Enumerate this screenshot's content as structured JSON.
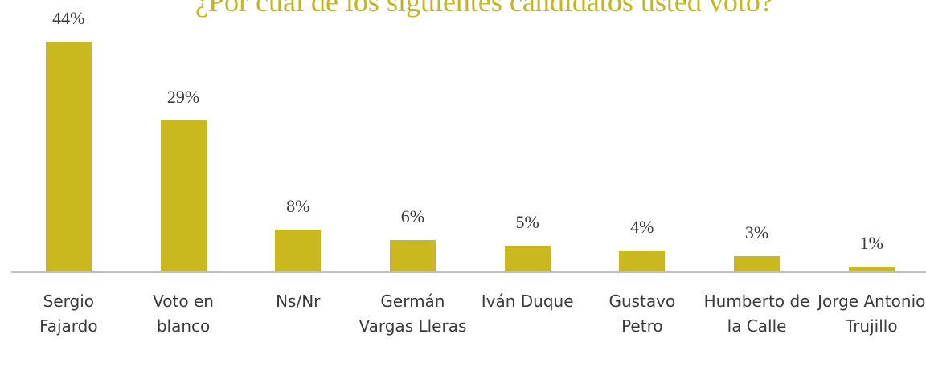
{
  "chart_data": {
    "type": "bar",
    "title": "¿Por cuál de los siguientes candidatos usted votó?",
    "categories": [
      "Sergio Fajardo",
      "Voto en blanco",
      "Ns/Nr",
      "Germán Vargas Lleras",
      "Iván Duque",
      "Gustavo Petro",
      "Humberto de la Calle",
      "Jorge Antonio Trujillo"
    ],
    "values": [
      44,
      29,
      8,
      6,
      5,
      4,
      3,
      1
    ],
    "value_labels": [
      "44%",
      "29%",
      "8%",
      "6%",
      "5%",
      "4%",
      "3%",
      "1%"
    ],
    "color": "#c9b91f"
  }
}
